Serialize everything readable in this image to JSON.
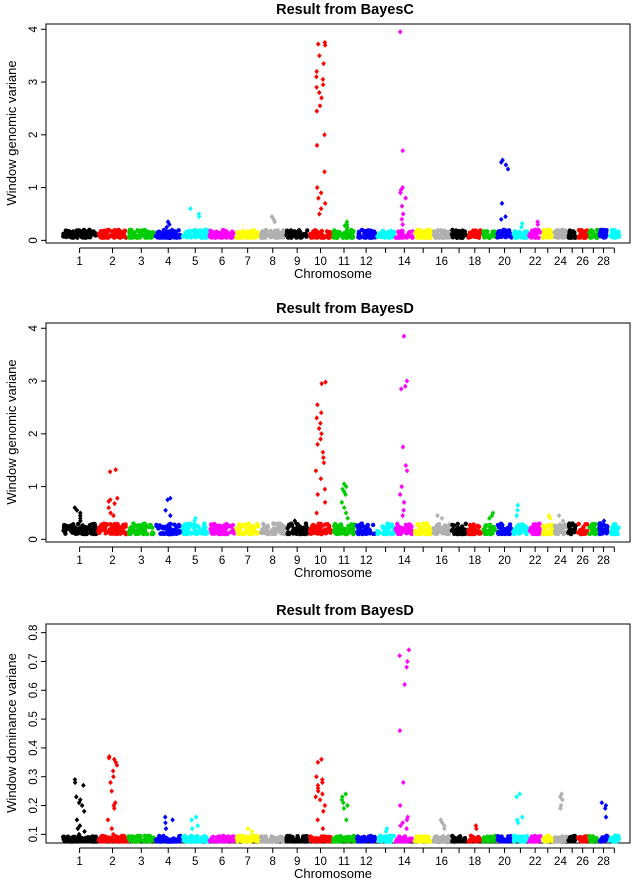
{
  "chart_data": [
    {
      "type": "scatter",
      "title": "Result from BayesC",
      "xlabel": "Chromosome",
      "ylabel": "Window genomic variane",
      "ylim": [
        -0.05,
        4.1
      ],
      "yticks": [
        "0",
        "1",
        "2",
        "3",
        "4"
      ],
      "xtick_labels": [
        "1",
        "2",
        "3",
        "4",
        "5",
        "6",
        "7",
        "8",
        "9",
        "10",
        "11",
        "12",
        "14",
        "16",
        "18",
        "20",
        "22",
        "24",
        "26",
        "28"
      ],
      "baseline": [
        0.05,
        0.2
      ],
      "peaks": [
        {
          "chromosome": 4,
          "values": [
            0.2,
            0.25,
            0.3,
            0.35
          ]
        },
        {
          "chromosome": 5,
          "values": [
            0.6,
            0.5,
            0.45
          ]
        },
        {
          "chromosome": 8,
          "values": [
            0.45,
            0.4,
            0.35
          ]
        },
        {
          "chromosome": 10,
          "values": [
            3.75,
            3.72,
            3.7,
            3.5,
            3.35,
            3.2,
            3.1,
            3.05,
            2.95,
            2.9,
            2.8,
            2.7,
            2.55,
            2.45,
            2.0,
            1.8,
            1.3,
            1.0,
            0.9,
            0.8,
            0.7,
            0.6,
            0.5
          ]
        },
        {
          "chromosome": 11,
          "values": [
            0.35,
            0.3,
            0.28,
            0.25
          ]
        },
        {
          "chromosome": 14,
          "values": [
            3.95,
            1.7,
            1.0,
            0.95,
            0.9,
            0.8,
            0.65,
            0.5,
            0.4,
            0.3
          ]
        },
        {
          "chromosome": 20,
          "values": [
            1.52,
            1.48,
            1.43,
            1.35,
            0.7,
            0.45,
            0.4
          ]
        },
        {
          "chromosome": 21,
          "values": [
            0.32,
            0.25
          ]
        },
        {
          "chromosome": 22,
          "values": [
            0.35,
            0.3
          ]
        }
      ]
    },
    {
      "type": "scatter",
      "title": "Result from BayesD",
      "xlabel": "Chromosome",
      "ylabel": "Window genomic variane",
      "ylim": [
        -0.05,
        4.1
      ],
      "yticks": [
        "0",
        "1",
        "2",
        "3",
        "4"
      ],
      "xtick_labels": [
        "1",
        "2",
        "3",
        "4",
        "5",
        "6",
        "7",
        "8",
        "9",
        "10",
        "11",
        "12",
        "14",
        "16",
        "18",
        "20",
        "22",
        "24",
        "26",
        "28"
      ],
      "baseline": [
        0.1,
        0.3
      ],
      "peaks": [
        {
          "chromosome": 1,
          "values": [
            0.6,
            0.55,
            0.5,
            0.45,
            0.4,
            0.35
          ]
        },
        {
          "chromosome": 2,
          "values": [
            1.32,
            1.28,
            0.78,
            0.75,
            0.72,
            0.68,
            0.6,
            0.5,
            0.45
          ]
        },
        {
          "chromosome": 4,
          "values": [
            0.78,
            0.75,
            0.55,
            0.45
          ]
        },
        {
          "chromosome": 5,
          "values": [
            0.4,
            0.35
          ]
        },
        {
          "chromosome": 9,
          "values": [
            0.35,
            0.3
          ]
        },
        {
          "chromosome": 10,
          "values": [
            2.98,
            2.95,
            2.55,
            2.4,
            2.3,
            2.2,
            2.1,
            2.0,
            1.9,
            1.8,
            1.65,
            1.55,
            1.45,
            1.3,
            1.15,
            0.95,
            0.85,
            0.7,
            0.5
          ]
        },
        {
          "chromosome": 11,
          "values": [
            1.05,
            1.0,
            0.95,
            0.9,
            0.85,
            0.7,
            0.6,
            0.5,
            0.4
          ]
        },
        {
          "chromosome": 14,
          "values": [
            3.85,
            3.0,
            2.9,
            2.85,
            1.75,
            1.4,
            1.3,
            1.0,
            0.85,
            0.7,
            0.55,
            0.45
          ]
        },
        {
          "chromosome": 16,
          "values": [
            0.45,
            0.4
          ]
        },
        {
          "chromosome": 19,
          "values": [
            0.5,
            0.45,
            0.4
          ]
        },
        {
          "chromosome": 21,
          "values": [
            0.65,
            0.55,
            0.45
          ]
        },
        {
          "chromosome": 23,
          "values": [
            0.45,
            0.4
          ]
        },
        {
          "chromosome": 24,
          "values": [
            0.45,
            0.35
          ]
        },
        {
          "chromosome": 28,
          "values": [
            0.35,
            0.3
          ]
        }
      ]
    },
    {
      "type": "scatter",
      "title": "Result from BayesD",
      "xlabel": "Chromosome",
      "ylabel": "Window dominance variane",
      "ylim": [
        0.07,
        0.83
      ],
      "yticks": [
        "0.1",
        "0.2",
        "0.3",
        "0.4",
        "0.5",
        "0.6",
        "0.7",
        "0.8"
      ],
      "xtick_labels": [
        "1",
        "2",
        "3",
        "4",
        "5",
        "6",
        "7",
        "8",
        "9",
        "10",
        "11",
        "12",
        "14",
        "16",
        "18",
        "20",
        "22",
        "24",
        "26",
        "28"
      ],
      "baseline": [
        0.075,
        0.095
      ],
      "peaks": [
        {
          "chromosome": 1,
          "values": [
            0.29,
            0.28,
            0.27,
            0.23,
            0.22,
            0.21,
            0.2,
            0.18,
            0.15,
            0.13,
            0.12,
            0.11,
            0.1
          ]
        },
        {
          "chromosome": 2,
          "values": [
            0.37,
            0.365,
            0.36,
            0.35,
            0.34,
            0.32,
            0.3,
            0.28,
            0.25,
            0.21,
            0.2,
            0.19,
            0.15,
            0.12,
            0.1
          ]
        },
        {
          "chromosome": 4,
          "values": [
            0.16,
            0.15,
            0.14,
            0.12
          ]
        },
        {
          "chromosome": 5,
          "values": [
            0.16,
            0.15,
            0.13,
            0.12
          ]
        },
        {
          "chromosome": 7,
          "values": [
            0.12,
            0.11
          ]
        },
        {
          "chromosome": 10,
          "values": [
            0.36,
            0.35,
            0.3,
            0.29,
            0.28,
            0.27,
            0.26,
            0.25,
            0.24,
            0.23,
            0.22,
            0.2,
            0.18,
            0.15,
            0.12
          ]
        },
        {
          "chromosome": 11,
          "values": [
            0.24,
            0.23,
            0.22,
            0.21,
            0.2,
            0.19,
            0.15
          ]
        },
        {
          "chromosome": 13,
          "values": [
            0.12,
            0.11
          ]
        },
        {
          "chromosome": 14,
          "values": [
            0.74,
            0.72,
            0.7,
            0.68,
            0.62,
            0.46,
            0.28,
            0.2,
            0.16,
            0.15,
            0.14,
            0.13,
            0.12
          ]
        },
        {
          "chromosome": 16,
          "values": [
            0.15,
            0.14,
            0.13,
            0.12
          ]
        },
        {
          "chromosome": 18,
          "values": [
            0.13,
            0.12
          ]
        },
        {
          "chromosome": 21,
          "values": [
            0.24,
            0.23,
            0.16,
            0.15,
            0.14
          ]
        },
        {
          "chromosome": 24,
          "values": [
            0.24,
            0.23,
            0.22,
            0.2,
            0.19
          ]
        },
        {
          "chromosome": 28,
          "values": [
            0.21,
            0.2,
            0.19,
            0.16
          ]
        }
      ]
    }
  ],
  "chromosome_colors": [
    "#000000",
    "#ff0000",
    "#00cd00",
    "#0000ff",
    "#00ffff",
    "#ff00ff",
    "#ffff00",
    "#b0b0b0"
  ]
}
